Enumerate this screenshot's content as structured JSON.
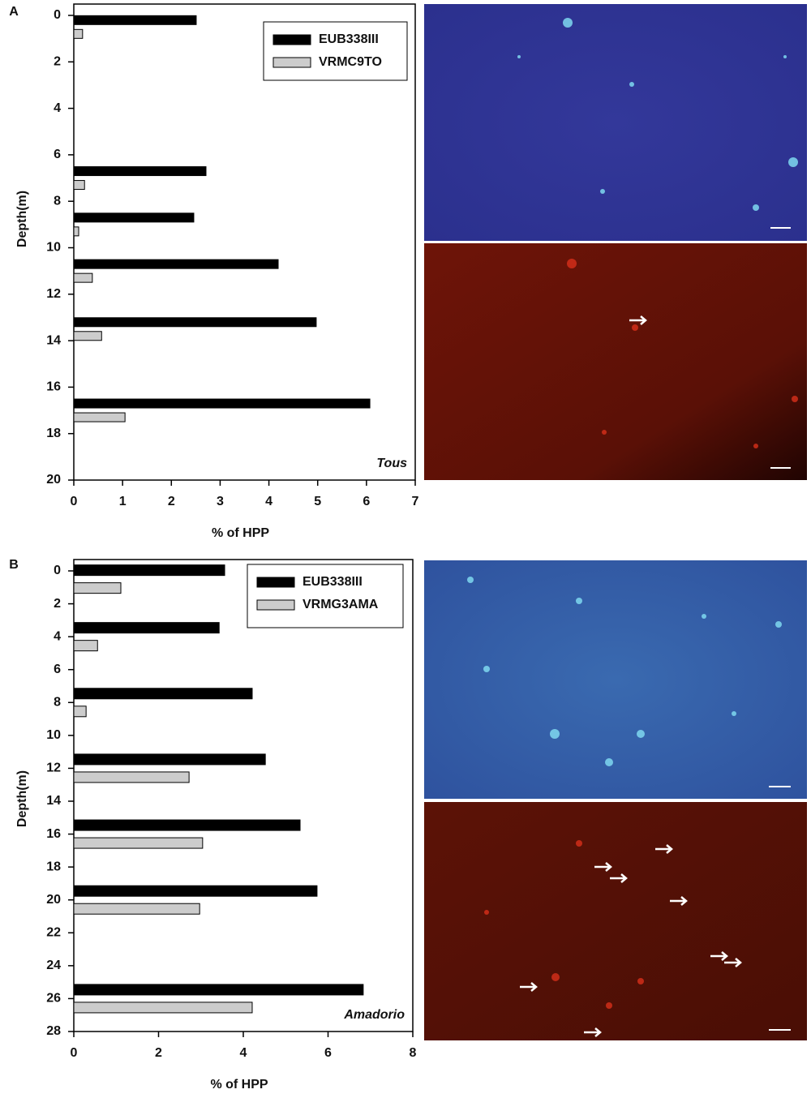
{
  "chart_data": [
    {
      "type": "hbar",
      "panel": "A",
      "annotation": "Tous",
      "x_label": "% of HPP",
      "y_label": "Depth(m)",
      "x": [
        0.5,
        7,
        9,
        11,
        13.5,
        17
      ],
      "series": [
        {
          "name": "EUB338III",
          "color": "#000000",
          "values": [
            2.51,
            2.71,
            2.46,
            4.19,
            4.97,
            6.07
          ]
        },
        {
          "name": "VRMC9TO",
          "color": "#cccccc",
          "values": [
            0.18,
            0.22,
            0.1,
            0.38,
            0.57,
            1.05
          ]
        }
      ],
      "xlim": [
        0,
        7
      ],
      "xticks": [
        0,
        1,
        2,
        3,
        4,
        5,
        6,
        7
      ],
      "ylim": [
        0,
        20
      ],
      "yticks": [
        0,
        2,
        4,
        6,
        8,
        10,
        12,
        14,
        16,
        18,
        20
      ],
      "y_reversed": true,
      "legend": "upper right"
    },
    {
      "type": "hbar",
      "panel": "B",
      "annotation": "Amadorio",
      "x_label": "% of HPP",
      "y_label": "Depth(m)",
      "x": [
        0.5,
        4,
        8,
        12,
        16,
        20,
        26
      ],
      "series": [
        {
          "name": "EUB338III",
          "color": "#000000",
          "values": [
            3.56,
            3.43,
            4.21,
            4.52,
            5.34,
            5.74,
            6.83
          ]
        },
        {
          "name": "VRMG3AMA",
          "color": "#cccccc",
          "values": [
            1.11,
            0.56,
            0.29,
            2.72,
            3.04,
            2.97,
            4.21
          ]
        }
      ],
      "xlim": [
        0,
        8
      ],
      "xticks": [
        0,
        2,
        4,
        6,
        8
      ],
      "ylim": [
        0,
        28
      ],
      "yticks": [
        0,
        2,
        4,
        6,
        8,
        10,
        12,
        14,
        16,
        18,
        20,
        22,
        24,
        26,
        28
      ],
      "y_reversed": true,
      "legend": "upper right"
    }
  ]
}
